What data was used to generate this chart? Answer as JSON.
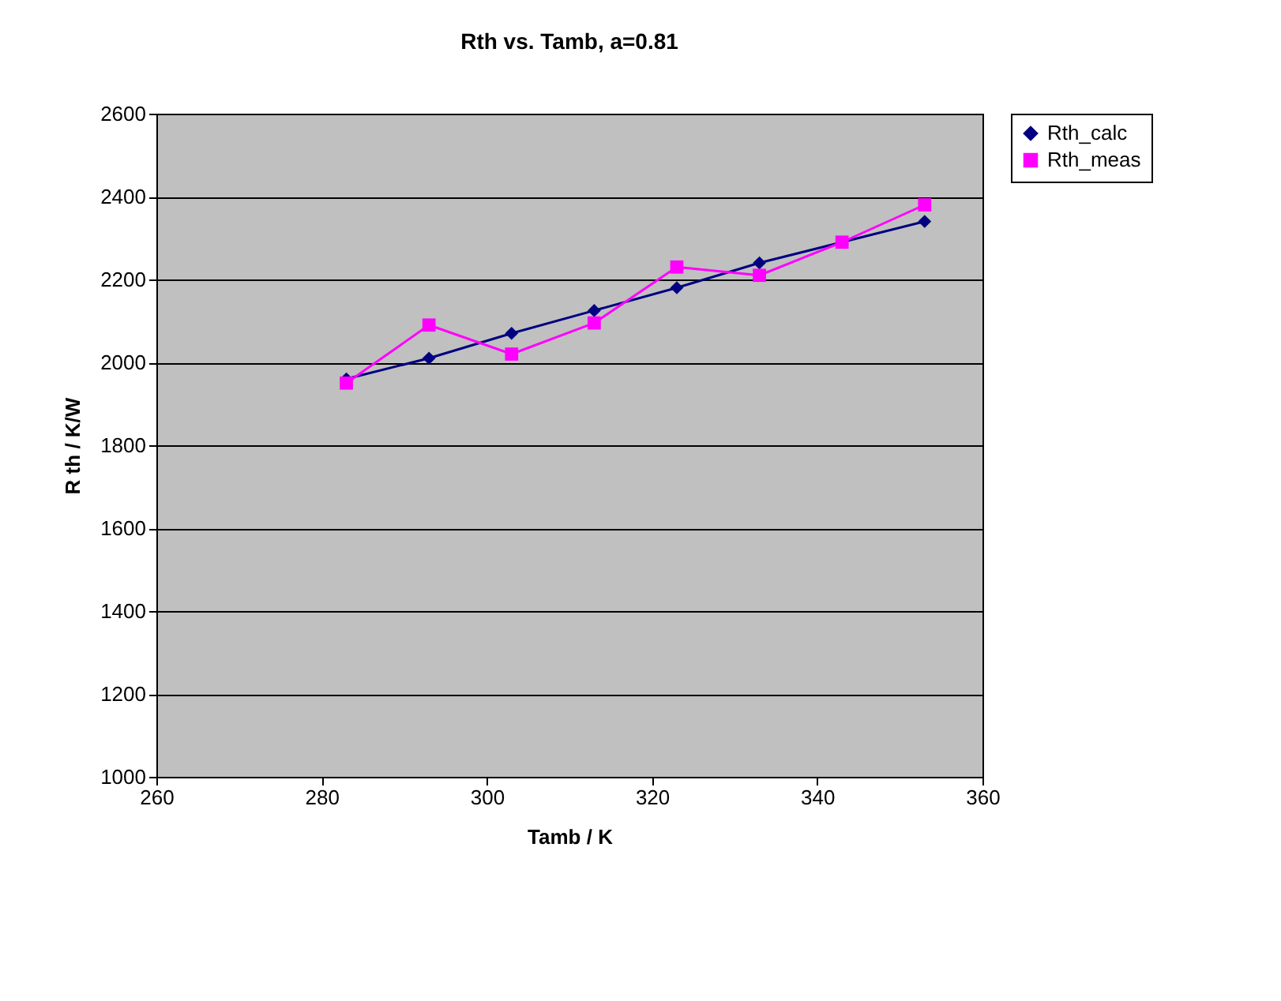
{
  "chart_data": {
    "type": "line",
    "title": "Rth vs. Tamb, a=0.81",
    "xlabel": "Tamb / K",
    "ylabel": "R th / K/W",
    "x": [
      283,
      293,
      303,
      313,
      323,
      333,
      343,
      353
    ],
    "series": [
      {
        "name": "Rth_calc",
        "color": "#000080",
        "marker": "diamond",
        "values": [
          1960,
          2010,
          2070,
          2125,
          2180,
          2240,
          2290,
          2340
        ]
      },
      {
        "name": "Rth_meas",
        "color": "#ff00ff",
        "marker": "square",
        "values": [
          1950,
          2090,
          2020,
          2095,
          2230,
          2210,
          2290,
          2380
        ]
      }
    ],
    "xlim": [
      260,
      360
    ],
    "xticks": [
      260,
      280,
      300,
      320,
      340,
      360
    ],
    "ylim": [
      1000,
      2600
    ],
    "yticks": [
      1000,
      1200,
      1400,
      1600,
      1800,
      2000,
      2200,
      2400,
      2600
    ],
    "grid": "y",
    "legend": "right"
  }
}
